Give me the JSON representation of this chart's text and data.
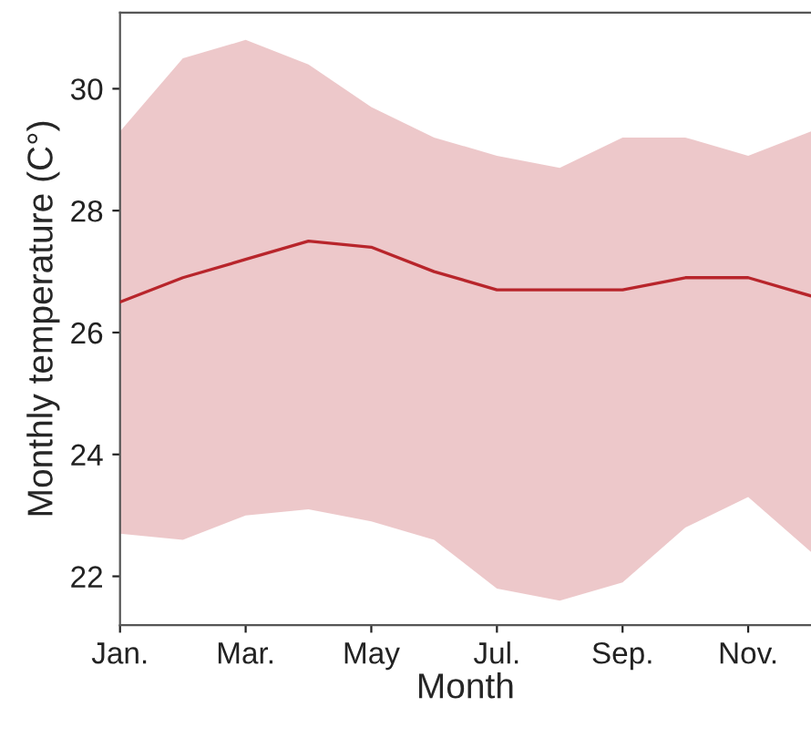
{
  "chart_data": {
    "type": "line",
    "xlabel": "Month",
    "ylabel": "Monthly temperature (C°)",
    "categories": [
      "Jan.",
      null,
      "Mar.",
      null,
      "May",
      null,
      "Jul.",
      null,
      "Sep.",
      null,
      "Nov.",
      null
    ],
    "series": [
      {
        "color": "#b8252b",
        "values": [
          26.5,
          26.9,
          27.2,
          27.5,
          27.4,
          27.0,
          26.7,
          26.7,
          26.7,
          26.9,
          26.9,
          26.6
        ],
        "lower": [
          22.7,
          22.6,
          23.0,
          23.1,
          22.9,
          22.6,
          21.8,
          21.6,
          21.9,
          22.8,
          23.3,
          22.4
        ],
        "upper": [
          29.3,
          30.5,
          30.8,
          30.4,
          29.7,
          29.2,
          28.9,
          28.7,
          29.2,
          29.2,
          28.9,
          29.3
        ]
      }
    ],
    "ylim": [
      21.2,
      31.25
    ],
    "yticks": [
      22,
      24,
      26,
      28,
      30
    ],
    "grid": false,
    "legend": false
  }
}
